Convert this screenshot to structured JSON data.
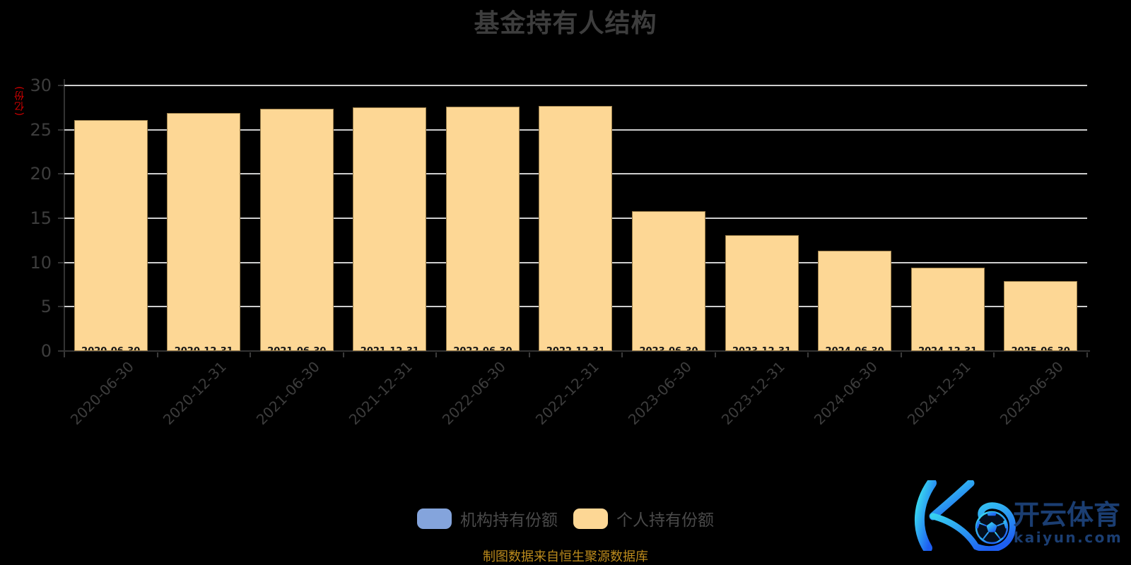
{
  "title": "基金持有人结构",
  "y_axis": {
    "unit_label": "(亿份)",
    "unit_color": "#d40000"
  },
  "legend": {
    "items": [
      {
        "label": "机构持有份额",
        "color": "#84A4DC"
      },
      {
        "label": "个人持有份额",
        "color": "#FDD795"
      }
    ]
  },
  "source_note": "制图数据来自恒生聚源数据库",
  "logo": {
    "brand_cn": "开云体育",
    "brand_domain": "kaiyun.com"
  },
  "colors": {
    "background": "#000000",
    "title_text": "#3d3d3d",
    "axis_label": "#3d3d3d",
    "gridline": "#cdcdcd",
    "axis_line": "#333333",
    "bar_fill": "#FDD795",
    "bar_border": "#9C7F4B",
    "legend_blue": "#84A4DC",
    "source_text": "#BB8A1C",
    "logo_navy": "#1B3E72",
    "logo_gradient_start": "#3CE5F0",
    "logo_gradient_end": "#1E5FF2"
  },
  "chart_data": {
    "type": "bar",
    "title": "基金持有人结构",
    "categories": [
      "2020-06-30",
      "2020-12-31",
      "2021-06-30",
      "2021-12-31",
      "2022-06-30",
      "2022-12-31",
      "2023-06-30",
      "2023-12-31",
      "2024-06-30",
      "2024-12-31",
      "2025-06-30"
    ],
    "series": [
      {
        "name": "机构持有份额",
        "color": "#84A4DC",
        "values": []
      },
      {
        "name": "个人持有份额",
        "color": "#FDD795",
        "values": [
          26.1,
          26.9,
          27.4,
          27.5,
          27.6,
          27.7,
          15.8,
          13.1,
          11.3,
          9.4,
          7.9
        ]
      }
    ],
    "xlabel": "",
    "ylabel": "(亿份)",
    "ylim": [
      0,
      30
    ],
    "y_ticks": [
      30,
      25,
      20,
      15,
      10,
      5,
      0
    ],
    "grid": true,
    "legend_position": "bottom",
    "x_tick_rotation": 45
  }
}
